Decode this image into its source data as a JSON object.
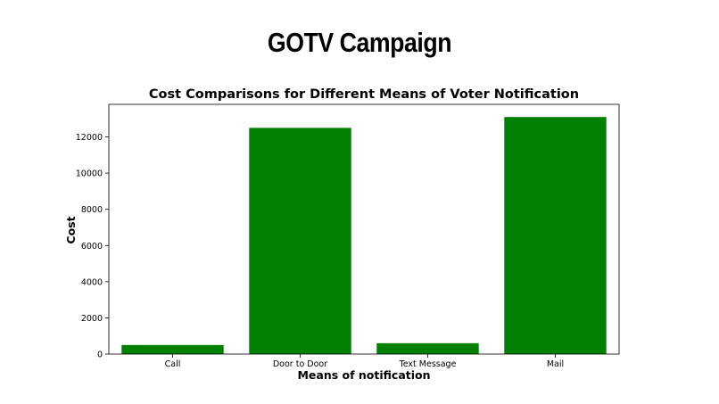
{
  "slide": {
    "title": "GOTV Campaign"
  },
  "chart_data": {
    "type": "bar",
    "title": "Cost Comparisons for Different Means of Voter Notification",
    "xlabel": "Means of notification",
    "ylabel": "Cost",
    "categories": [
      "Call",
      "Door to Door",
      "Text Message",
      "Mail"
    ],
    "values": [
      500,
      12500,
      600,
      13100
    ],
    "ylim": [
      0,
      13800
    ],
    "yticks": [
      0,
      2000,
      4000,
      6000,
      8000,
      10000,
      12000
    ],
    "bar_color": "#008000",
    "grid": false
  }
}
